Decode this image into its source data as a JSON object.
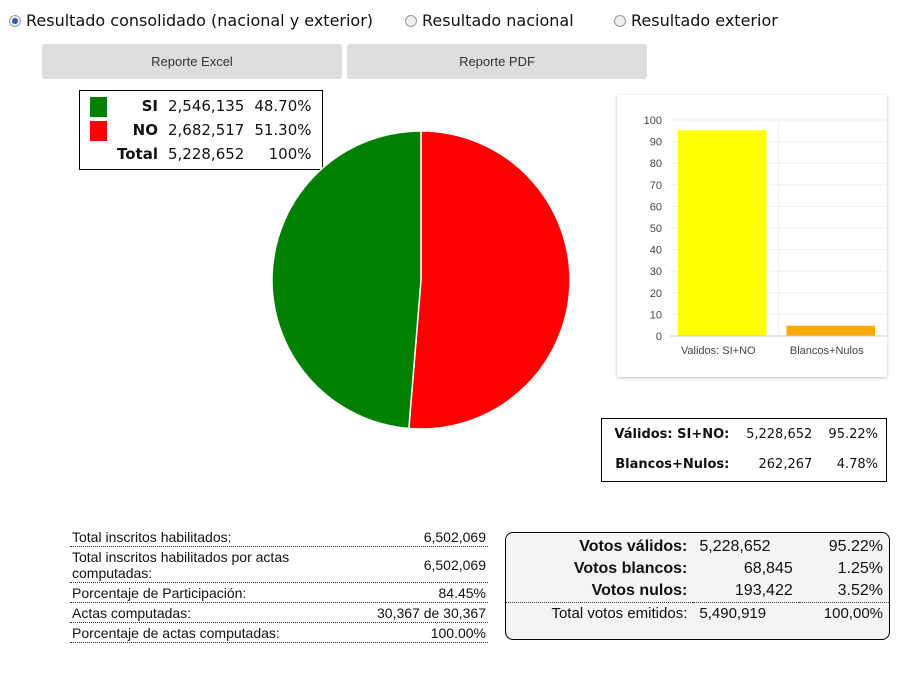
{
  "options": [
    {
      "label": "Resultado consolidado (nacional y exterior)",
      "selected": true
    },
    {
      "label": "Resultado nacional",
      "selected": false
    },
    {
      "label": "Resultado exterior",
      "selected": false
    }
  ],
  "buttons": {
    "excel": "Reporte Excel",
    "pdf": "Reporte PDF"
  },
  "legend": [
    {
      "label": "SI",
      "votes": "2,546,135",
      "pct": "48.70%",
      "color": "#008000"
    },
    {
      "label": "NO",
      "votes": "2,682,517",
      "pct": "51.30%",
      "color": "#ff0000"
    },
    {
      "label": "Total",
      "votes": "5,228,652",
      "pct": "100%"
    }
  ],
  "chart_data": [
    {
      "type": "pie",
      "slices": [
        {
          "label": "SI",
          "value": 48.7,
          "color": "#008000"
        },
        {
          "label": "NO",
          "value": 51.3,
          "color": "#ff0000"
        }
      ]
    },
    {
      "type": "bar",
      "categories": [
        "Validos: SI+NO",
        "Blancos+Nulos"
      ],
      "values": [
        95.22,
        4.78
      ],
      "colors": [
        "#ffff00",
        "#ffaa00"
      ],
      "ylim": [
        0,
        100
      ],
      "yticks": [
        0,
        10,
        20,
        30,
        40,
        50,
        60,
        70,
        80,
        90,
        100
      ],
      "grid": true
    }
  ],
  "valid_box": [
    {
      "label": "Válidos: SI+NO:",
      "votes": "5,228,652",
      "pct": "95.22%"
    },
    {
      "label": "Blancos+Nulos:",
      "votes": "262,267",
      "pct": "4.78%"
    }
  ],
  "stats": [
    {
      "label": "Total inscritos habilitados:",
      "value": "6,502,069"
    },
    {
      "label": "Total inscritos habilitados por actas computadas:",
      "value": "6,502,069"
    },
    {
      "label": "Porcentaje de Participación:",
      "value": "84.45%"
    },
    {
      "label": "Actas computadas:",
      "value": "30,367 de 30,367"
    },
    {
      "label": "Porcentaje de actas computadas:",
      "value": "100.00%"
    }
  ],
  "summary": {
    "rows": [
      {
        "label": "Votos válidos:",
        "votes": "5,228,652",
        "pct": "95.22%"
      },
      {
        "label": "Votos blancos:",
        "votes": "68,845",
        "pct": "1.25%"
      },
      {
        "label": "Votos nulos:",
        "votes": "193,422",
        "pct": "3.52%"
      }
    ],
    "total": {
      "label": "Total votos emitidos:",
      "votes": "5,490,919",
      "pct": "100,00%"
    }
  }
}
